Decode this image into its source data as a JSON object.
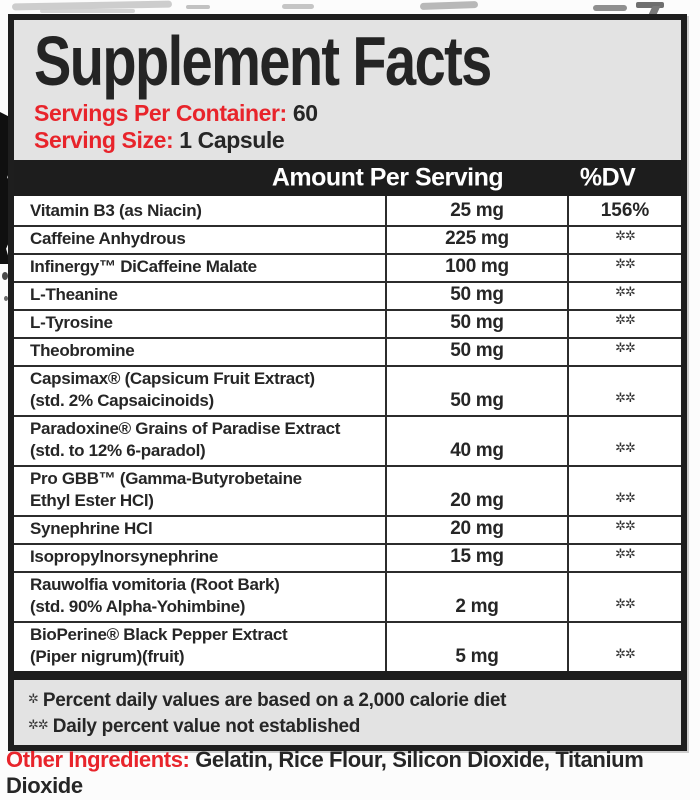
{
  "panel": {
    "title": "Supplement Facts",
    "serving_info": [
      {
        "label": "Servings Per Container:",
        "value": "60"
      },
      {
        "label": "Serving Size:",
        "value": "1 Capsule"
      }
    ],
    "columns": {
      "amount": "Amount Per Serving",
      "dv": "%DV"
    },
    "rows": [
      {
        "name_lines": [
          "Vitamin B3 (as Niacin)"
        ],
        "amount": "25 mg",
        "dv": "156%"
      },
      {
        "name_lines": [
          "Caffeine Anhydrous"
        ],
        "amount": "225 mg",
        "dv": "✲✲"
      },
      {
        "name_lines": [
          "Infinergy™ DiCaffeine Malate"
        ],
        "amount": "100 mg",
        "dv": "✲✲"
      },
      {
        "name_lines": [
          "L-Theanine"
        ],
        "amount": "50 mg",
        "dv": "✲✲"
      },
      {
        "name_lines": [
          "L-Tyrosine"
        ],
        "amount": "50 mg",
        "dv": "✲✲"
      },
      {
        "name_lines": [
          "Theobromine"
        ],
        "amount": "50 mg",
        "dv": "✲✲"
      },
      {
        "name_lines": [
          "Capsimax® (Capsicum Fruit Extract)",
          "(std. 2% Capsaicinoids)"
        ],
        "amount": "50 mg",
        "dv": "✲✲"
      },
      {
        "name_lines": [
          "Paradoxine® Grains of Paradise Extract",
          "(std. to 12% 6-paradol)"
        ],
        "amount": "40 mg",
        "dv": "✲✲"
      },
      {
        "name_lines": [
          "Pro GBB™ (Gamma-Butyrobetaine",
          "Ethyl Ester HCl)"
        ],
        "amount": "20 mg",
        "dv": "✲✲"
      },
      {
        "name_lines": [
          "Synephrine HCl"
        ],
        "amount": "20 mg",
        "dv": "✲✲"
      },
      {
        "name_lines": [
          "Isopropylnorsynephrine"
        ],
        "amount": "15 mg",
        "dv": "✲✲"
      },
      {
        "name_lines": [
          "Rauwolfia vomitoria (Root Bark)",
          "(std. 90% Alpha-Yohimbine)"
        ],
        "amount": "2 mg",
        "dv": "✲✲"
      },
      {
        "name_lines": [
          "BioPerine® Black Pepper Extract",
          "(Piper nigrum)(fruit)"
        ],
        "amount": "5 mg",
        "dv": "✲✲"
      }
    ],
    "footnotes": [
      {
        "symbol": "✲",
        "text": "Percent daily values are based on a 2,000 calorie diet"
      },
      {
        "symbol": "✲✲",
        "text": "Daily percent value not established"
      }
    ],
    "other_ingredients": {
      "label": "Other Ingredients:",
      "value": "Gelatin, Rice Flour, Silicon Dioxide, Titanium Dioxide"
    },
    "colors": {
      "accent_red": "#e8242b",
      "ink": "#262626",
      "panel_gray": "#e3e3e3",
      "bar_black": "#1d1d1d"
    }
  }
}
